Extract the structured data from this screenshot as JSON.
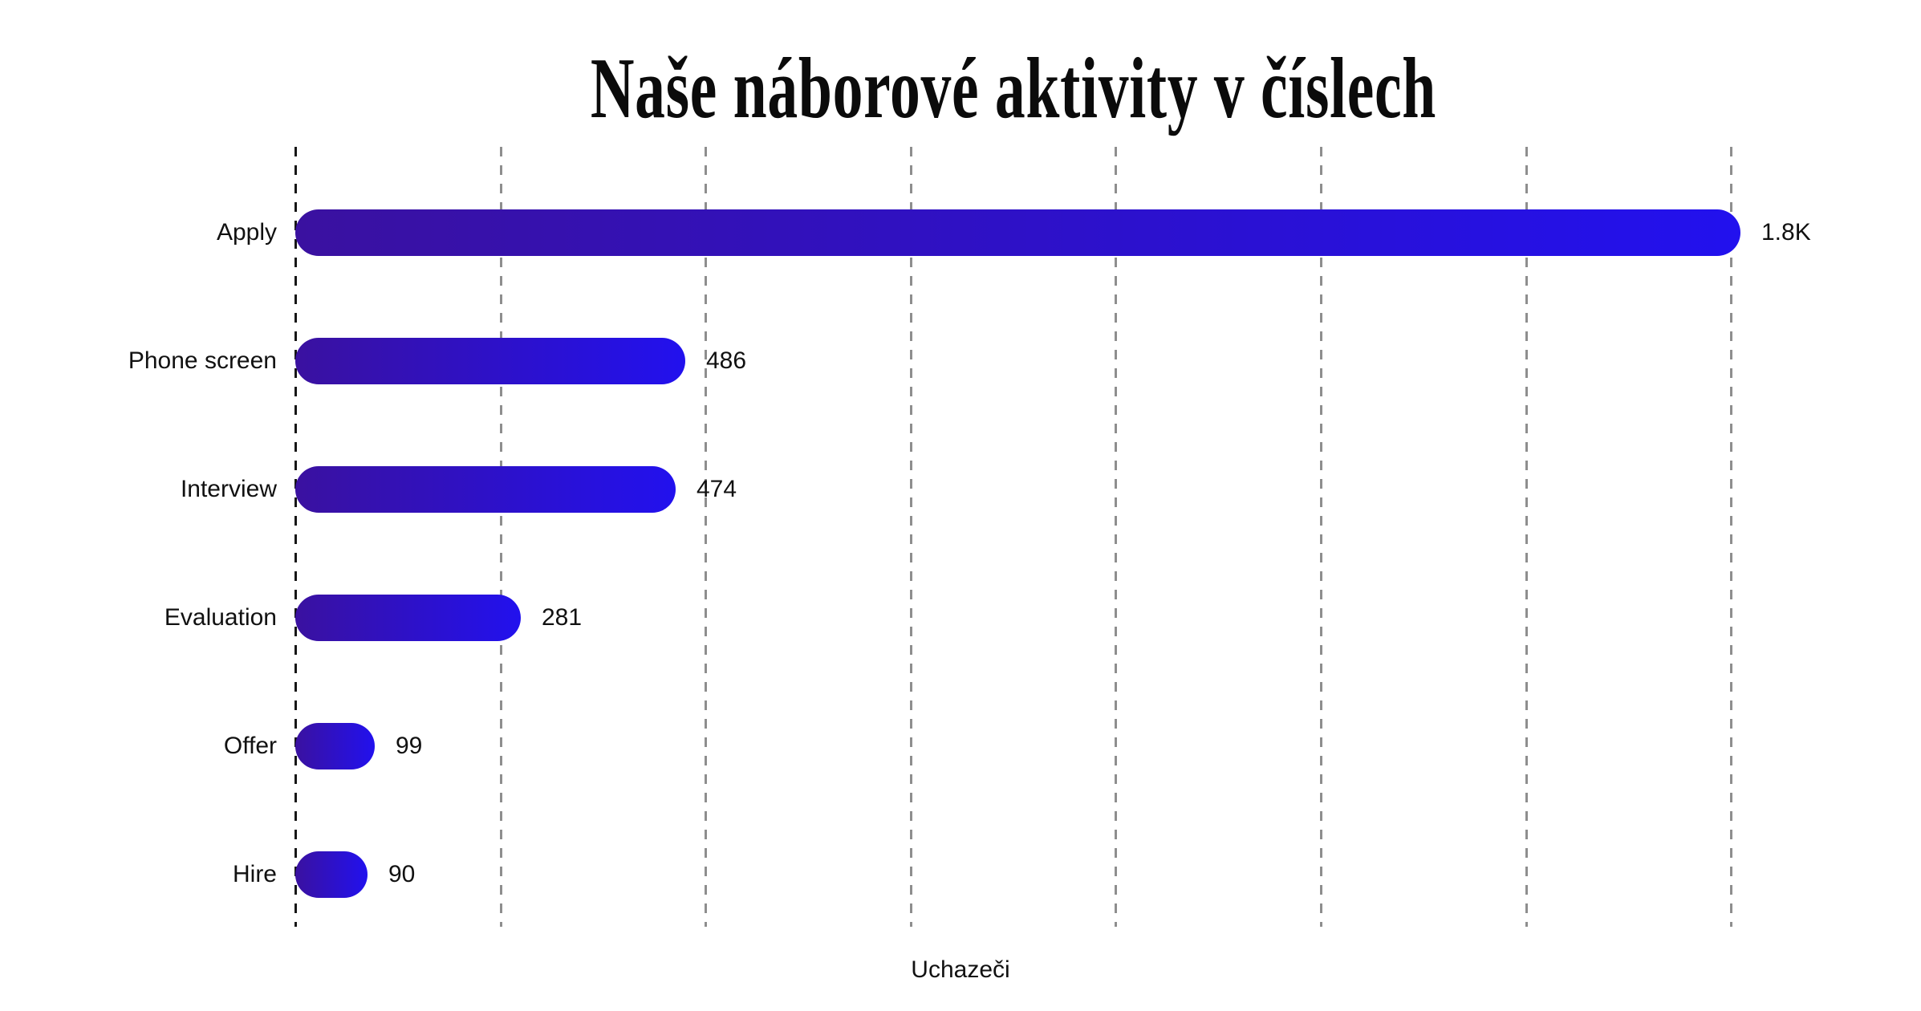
{
  "title": "Naše náborové aktivity v číslech",
  "xlabel": "Uchazeči",
  "colors": {
    "background": "#ffffff",
    "bar_gradient_start": "#3a11a0",
    "bar_gradient_end": "#2211ee",
    "axis_line": "#161616",
    "gridline": "#8e8e8e",
    "text": "#111111"
  },
  "chart_data": {
    "type": "bar",
    "orientation": "horizontal",
    "title": "Naše náborové aktivity v číslech",
    "xlabel": "Uchazeči",
    "ylabel": "",
    "categories": [
      "Apply",
      "Phone screen",
      "Interview",
      "Evaluation",
      "Offer",
      "Hire"
    ],
    "values": [
      1800,
      486,
      474,
      281,
      99,
      90
    ],
    "value_labels": [
      "1.8K",
      "486",
      "474",
      "281",
      "99",
      "90"
    ],
    "xlim": [
      0,
      1800
    ],
    "gridline_step": 250,
    "gridline_count": 8,
    "grid": "vertical-dashed",
    "legend": false,
    "bar_style": "rounded-pill-gradient"
  }
}
